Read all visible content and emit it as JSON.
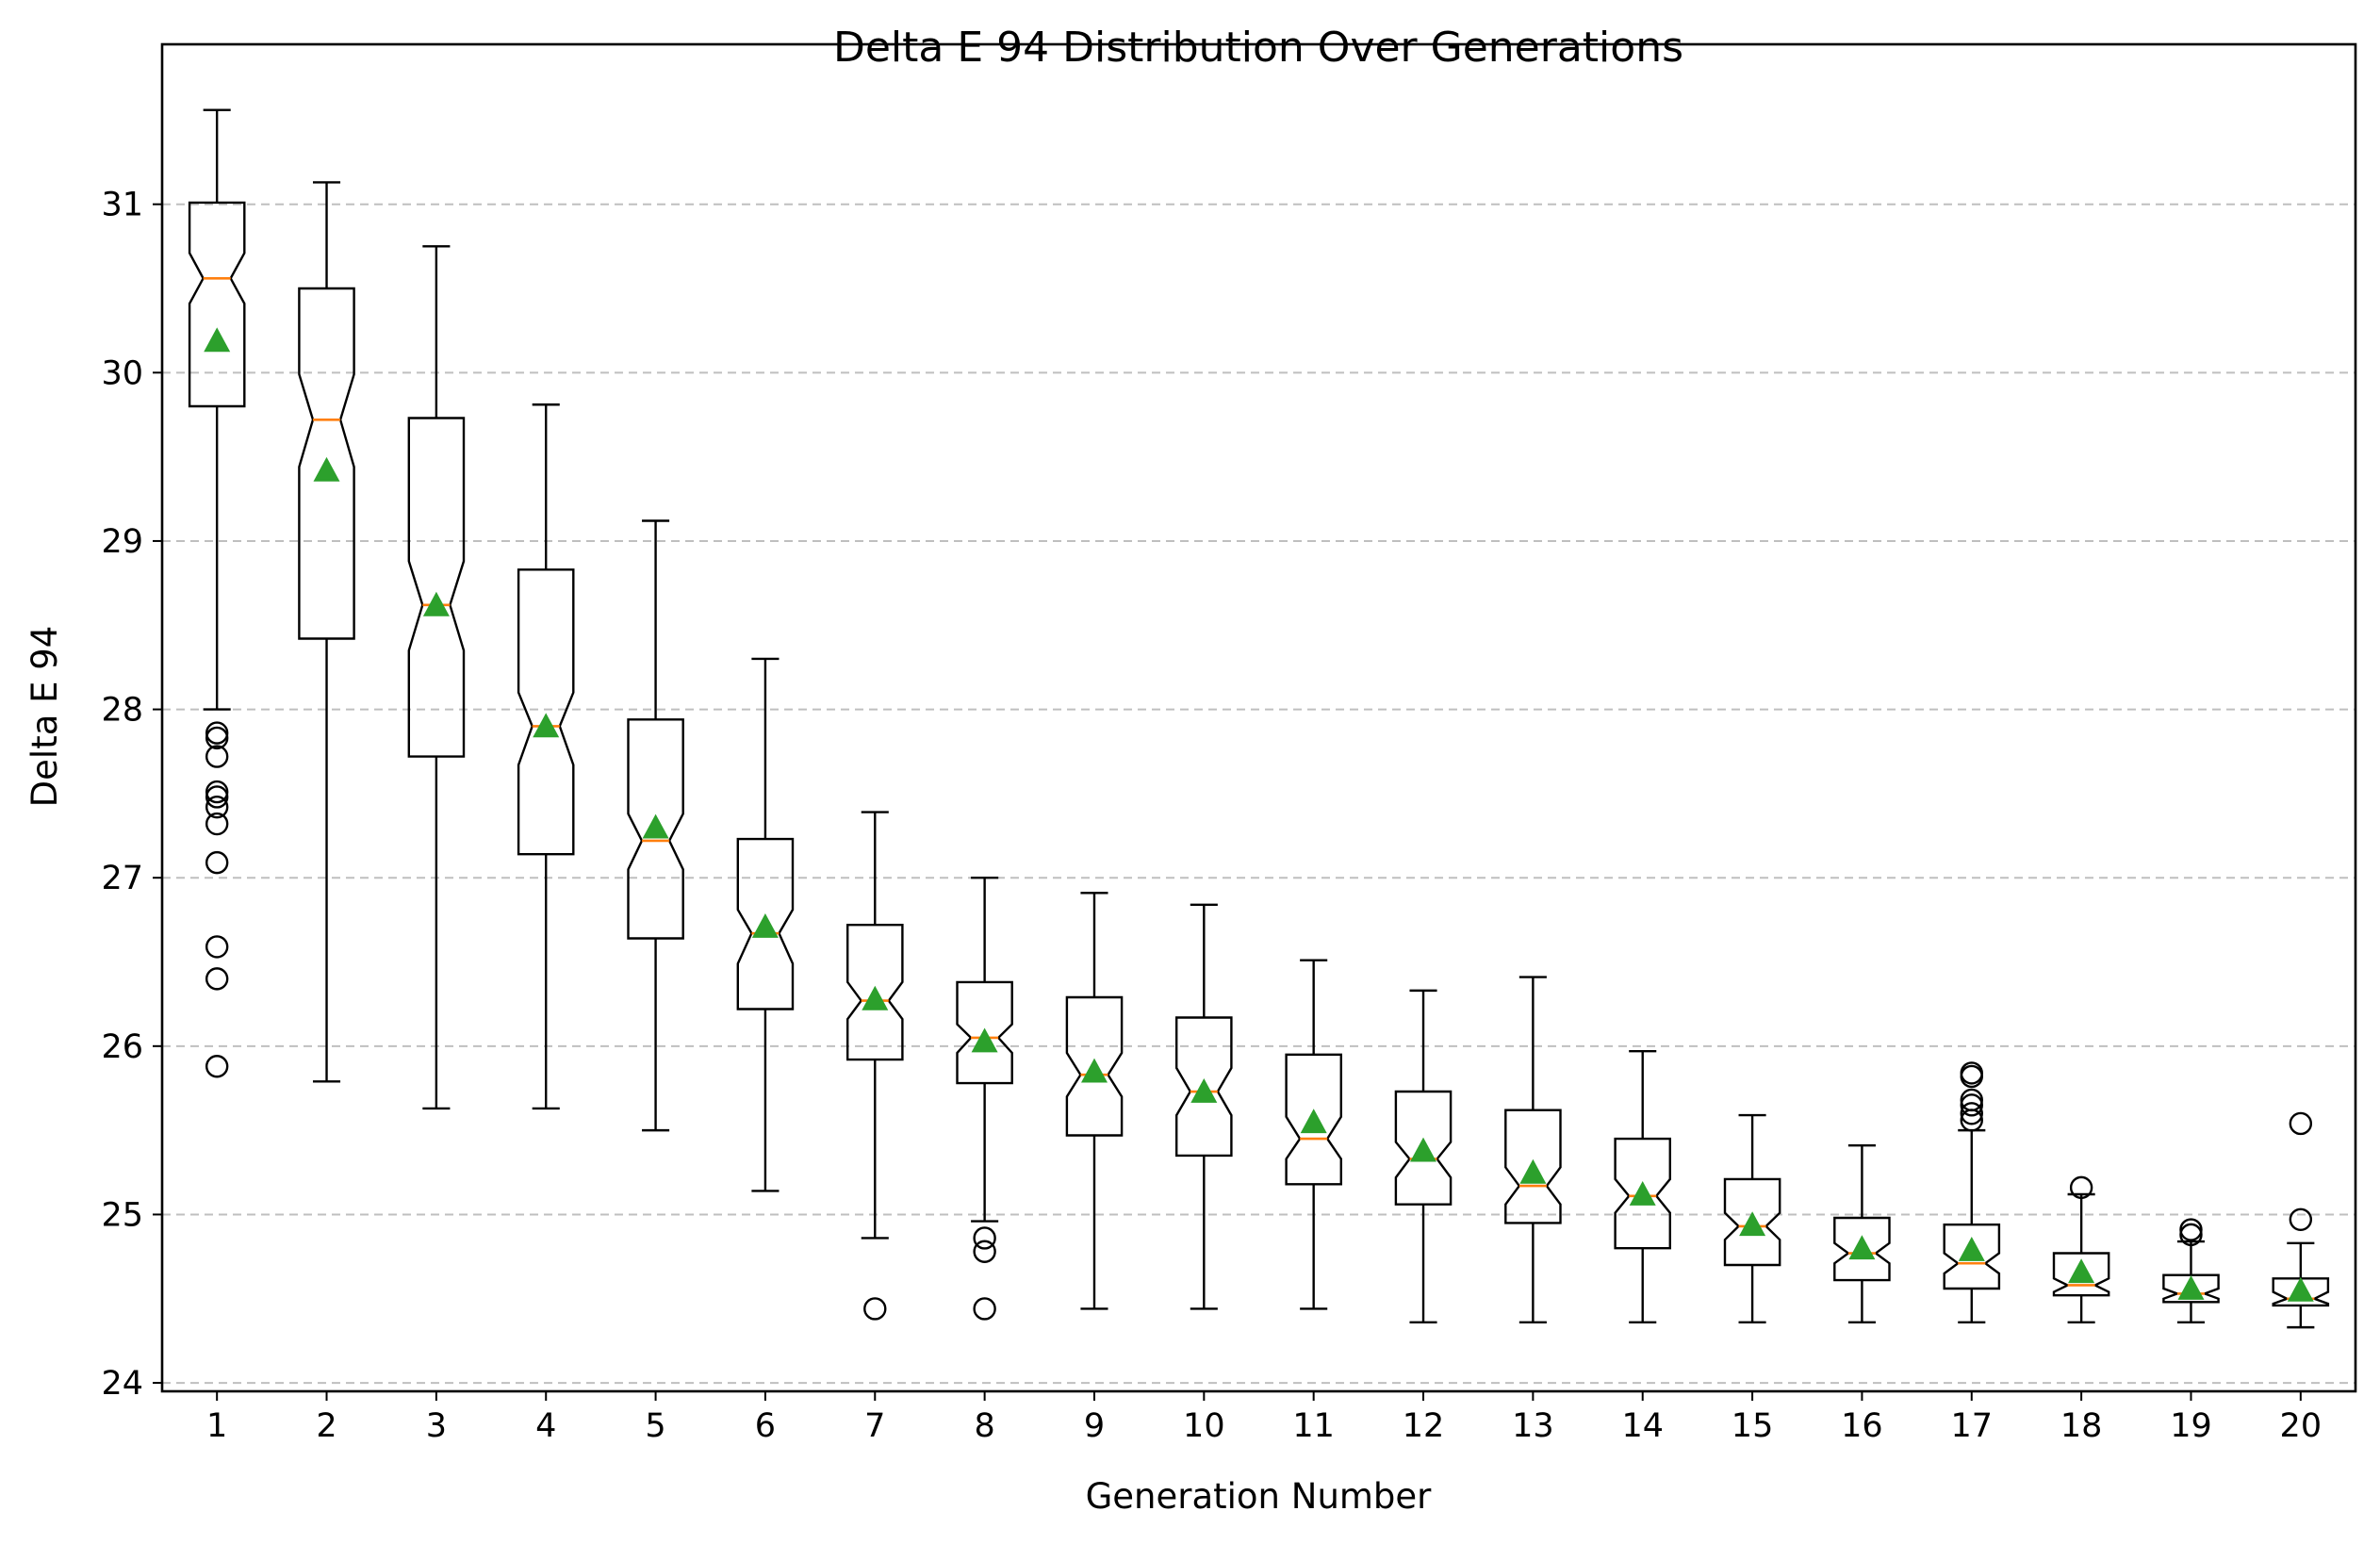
{
  "chart_data": {
    "type": "boxplot",
    "title": "Delta E 94 Distribution Over Generations",
    "xlabel": "Generation Number",
    "ylabel": "Delta E 94",
    "ylim": [
      23.95,
      31.95
    ],
    "yticks": [
      24,
      25,
      26,
      27,
      28,
      29,
      30,
      31
    ],
    "grid": "horizontal dashed",
    "notched": true,
    "show_means": true,
    "colors": {
      "box": "#000000",
      "median": "#ff7f0e",
      "mean": "#2ca02c",
      "grid": "#b0b0b0"
    },
    "categories": [
      "1",
      "2",
      "3",
      "4",
      "5",
      "6",
      "7",
      "8",
      "9",
      "10",
      "11",
      "12",
      "13",
      "14",
      "15",
      "16",
      "17",
      "18",
      "19",
      "20"
    ],
    "boxes": [
      {
        "whislo": 28.0,
        "q1": 29.8,
        "med": 30.56,
        "q3": 31.01,
        "whishi": 31.56,
        "mean": 30.19,
        "notch_lo": 30.41,
        "notch_hi": 30.71,
        "fliers": [
          25.88,
          26.4,
          26.59,
          27.09,
          27.32,
          27.42,
          27.48,
          27.51,
          27.72,
          27.83,
          27.86
        ]
      },
      {
        "whislo": 25.79,
        "q1": 28.42,
        "med": 29.72,
        "q3": 30.5,
        "whishi": 31.13,
        "mean": 29.42,
        "notch_lo": 29.44,
        "notch_hi": 29.99,
        "fliers": []
      },
      {
        "whislo": 25.63,
        "q1": 27.72,
        "med": 28.62,
        "q3": 29.73,
        "whishi": 30.75,
        "mean": 28.62,
        "notch_lo": 28.35,
        "notch_hi": 28.88,
        "fliers": []
      },
      {
        "whislo": 25.63,
        "q1": 27.14,
        "med": 27.9,
        "q3": 28.83,
        "whishi": 29.81,
        "mean": 27.9,
        "notch_lo": 27.67,
        "notch_hi": 28.1,
        "fliers": []
      },
      {
        "whislo": 25.5,
        "q1": 26.64,
        "med": 27.22,
        "q3": 27.94,
        "whishi": 29.12,
        "mean": 27.3,
        "notch_lo": 27.05,
        "notch_hi": 27.38,
        "fliers": []
      },
      {
        "whislo": 25.14,
        "q1": 26.22,
        "med": 26.67,
        "q3": 27.23,
        "whishi": 28.3,
        "mean": 26.71,
        "notch_lo": 26.49,
        "notch_hi": 26.81,
        "fliers": []
      },
      {
        "whislo": 24.86,
        "q1": 25.92,
        "med": 26.27,
        "q3": 26.72,
        "whishi": 27.39,
        "mean": 26.28,
        "notch_lo": 26.16,
        "notch_hi": 26.38,
        "fliers": [
          24.44
        ]
      },
      {
        "whislo": 24.96,
        "q1": 25.78,
        "med": 26.05,
        "q3": 26.38,
        "whishi": 27.0,
        "mean": 26.03,
        "notch_lo": 25.96,
        "notch_hi": 26.13,
        "fliers": [
          24.44,
          24.78,
          24.86
        ]
      },
      {
        "whislo": 24.44,
        "q1": 25.47,
        "med": 25.83,
        "q3": 26.29,
        "whishi": 26.91,
        "mean": 25.85,
        "notch_lo": 25.7,
        "notch_hi": 25.96,
        "fliers": []
      },
      {
        "whislo": 24.44,
        "q1": 25.35,
        "med": 25.73,
        "q3": 26.17,
        "whishi": 26.84,
        "mean": 25.73,
        "notch_lo": 25.59,
        "notch_hi": 25.87,
        "fliers": []
      },
      {
        "whislo": 24.44,
        "q1": 25.18,
        "med": 25.45,
        "q3": 25.95,
        "whishi": 26.51,
        "mean": 25.55,
        "notch_lo": 25.33,
        "notch_hi": 25.58,
        "fliers": []
      },
      {
        "whislo": 24.36,
        "q1": 25.06,
        "med": 25.33,
        "q3": 25.73,
        "whishi": 26.33,
        "mean": 25.38,
        "notch_lo": 25.22,
        "notch_hi": 25.43,
        "fliers": []
      },
      {
        "whislo": 24.36,
        "q1": 24.95,
        "med": 25.17,
        "q3": 25.62,
        "whishi": 26.41,
        "mean": 25.25,
        "notch_lo": 25.06,
        "notch_hi": 25.28,
        "fliers": []
      },
      {
        "whislo": 24.36,
        "q1": 24.8,
        "med": 25.11,
        "q3": 25.45,
        "whishi": 25.97,
        "mean": 25.12,
        "notch_lo": 25.01,
        "notch_hi": 25.21,
        "fliers": []
      },
      {
        "whislo": 24.36,
        "q1": 24.7,
        "med": 24.93,
        "q3": 25.21,
        "whishi": 25.59,
        "mean": 24.94,
        "notch_lo": 24.85,
        "notch_hi": 25.01,
        "fliers": []
      },
      {
        "whislo": 24.36,
        "q1": 24.61,
        "med": 24.77,
        "q3": 24.98,
        "whishi": 25.41,
        "mean": 24.8,
        "notch_lo": 24.71,
        "notch_hi": 24.83,
        "fliers": []
      },
      {
        "whislo": 24.36,
        "q1": 24.56,
        "med": 24.71,
        "q3": 24.94,
        "whishi": 25.5,
        "mean": 24.79,
        "notch_lo": 24.65,
        "notch_hi": 24.77,
        "fliers": [
          25.56,
          25.6,
          25.65,
          25.68,
          25.82,
          25.84
        ]
      },
      {
        "whislo": 24.36,
        "q1": 24.52,
        "med": 24.58,
        "q3": 24.77,
        "whishi": 25.12,
        "mean": 24.66,
        "notch_lo": 24.54,
        "notch_hi": 24.62,
        "fliers": [
          25.16
        ]
      },
      {
        "whislo": 24.36,
        "q1": 24.48,
        "med": 24.53,
        "q3": 24.64,
        "whishi": 24.84,
        "mean": 24.56,
        "notch_lo": 24.5,
        "notch_hi": 24.56,
        "fliers": [
          24.88,
          24.91
        ]
      },
      {
        "whislo": 24.33,
        "q1": 24.46,
        "med": 24.5,
        "q3": 24.62,
        "whishi": 24.83,
        "mean": 24.55,
        "notch_lo": 24.47,
        "notch_hi": 24.54,
        "fliers": [
          24.97,
          25.54
        ]
      }
    ]
  }
}
